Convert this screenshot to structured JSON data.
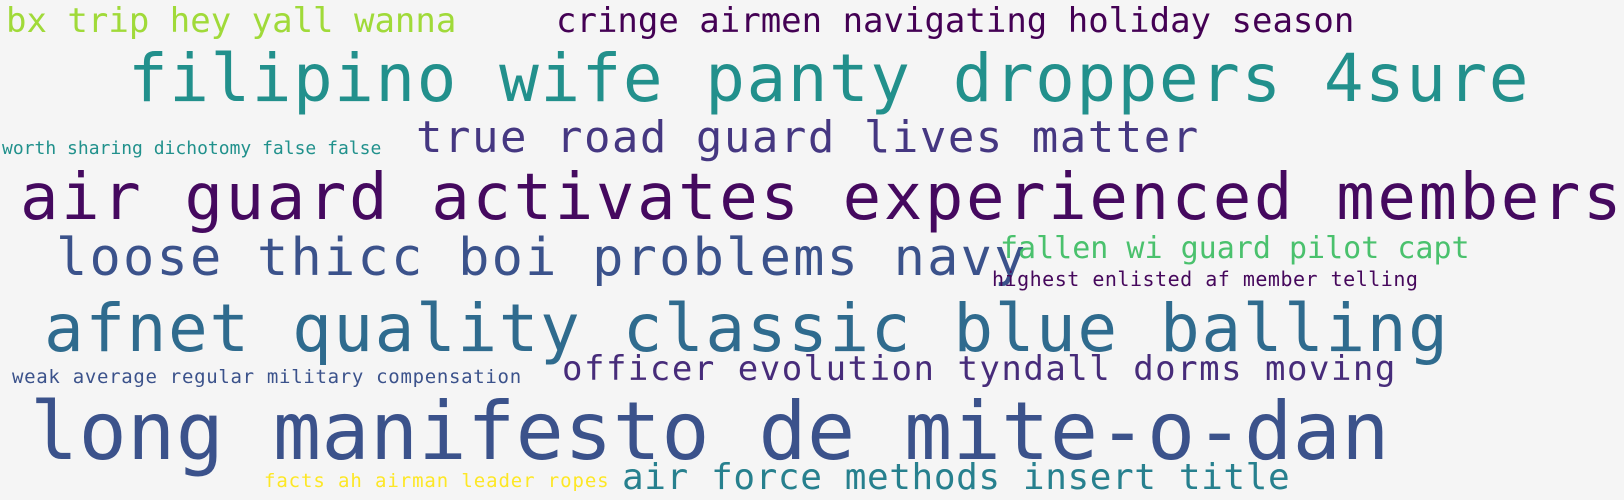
{
  "word_cloud": {
    "background": "#f5f5f5",
    "words": [
      {
        "text": "bx trip hey yall wanna",
        "color": "#a0da39"
      },
      {
        "text": "cringe airmen navigating holiday season",
        "color": "#440154"
      },
      {
        "text": "filipino wife panty droppers 4sure",
        "color": "#22908c"
      },
      {
        "text": "worth sharing dichotomy false false",
        "color": "#21918c"
      },
      {
        "text": "true road guard lives matter",
        "color": "#453781"
      },
      {
        "text": "air guard activates experienced members",
        "color": "#45095f"
      },
      {
        "text": "loose thicc boi problems navy",
        "color": "#3b528b"
      },
      {
        "text": "fallen wi guard pilot capt",
        "color": "#4ac16d"
      },
      {
        "text": "highest enlisted af member telling",
        "color": "#46085c"
      },
      {
        "text": "afnet quality classic blue balling",
        "color": "#2f6b8e"
      },
      {
        "text": "weak average regular military compensation",
        "color": "#3b528b"
      },
      {
        "text": "officer evolution tyndall dorms moving",
        "color": "#472c7a"
      },
      {
        "text": "long manifesto de mite-o-dan",
        "color": "#3b528b"
      },
      {
        "text": "facts ah airman leader ropes",
        "color": "#fde725"
      },
      {
        "text": "air force methods insert title",
        "color": "#27808e"
      }
    ]
  }
}
